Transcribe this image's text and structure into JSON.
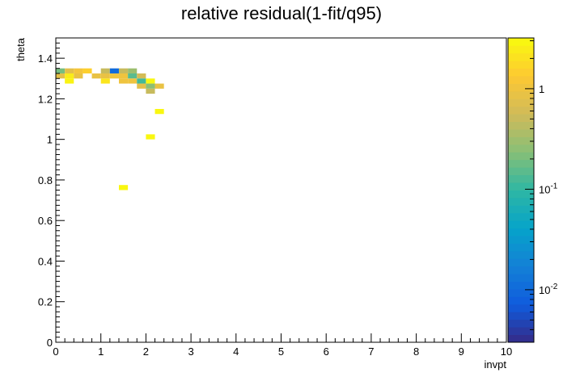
{
  "chart_data": {
    "type": "heatmap",
    "title": "relative residual(1-fit/q95)",
    "xlabel": "invpt",
    "ylabel": "theta",
    "xlim": [
      0,
      10
    ],
    "ylim": [
      0,
      1.5
    ],
    "x_ticks": [
      "0",
      "1",
      "2",
      "3",
      "4",
      "5",
      "6",
      "7",
      "8",
      "9",
      "10"
    ],
    "y_ticks": [
      "0",
      "0.2",
      "0.4",
      "0.6",
      "0.8",
      "1",
      "1.2",
      "1.4"
    ],
    "z_scale": "log",
    "z_range": [
      0.003,
      3.2
    ],
    "z_tick_labels": [
      {
        "base": "10",
        "exp": "-2",
        "value": 0.01
      },
      {
        "base": "10",
        "exp": "-1",
        "value": 0.1
      },
      {
        "base": "1",
        "exp": "",
        "value": 1
      }
    ],
    "palette": "kBird",
    "bin_size": {
      "x": 0.2,
      "y": 0.025
    },
    "cells": [
      {
        "x": 0.0,
        "y": 1.325,
        "z": 0.2
      },
      {
        "x": 0.2,
        "y": 1.325,
        "z": 0.8
      },
      {
        "x": 0.4,
        "y": 1.325,
        "z": 1.1
      },
      {
        "x": 0.6,
        "y": 1.325,
        "z": 1.5
      },
      {
        "x": 1.0,
        "y": 1.325,
        "z": 0.5
      },
      {
        "x": 1.2,
        "y": 1.325,
        "z": 0.01
      },
      {
        "x": 1.4,
        "y": 1.325,
        "z": 0.5
      },
      {
        "x": 1.6,
        "y": 1.325,
        "z": 0.3
      },
      {
        "x": 0.0,
        "y": 1.3,
        "z": 0.8
      },
      {
        "x": 0.2,
        "y": 1.3,
        "z": 2.5
      },
      {
        "x": 0.4,
        "y": 1.3,
        "z": 0.9
      },
      {
        "x": 0.8,
        "y": 1.3,
        "z": 0.9
      },
      {
        "x": 1.0,
        "y": 1.3,
        "z": 0.9
      },
      {
        "x": 1.2,
        "y": 1.3,
        "z": 1.0
      },
      {
        "x": 1.4,
        "y": 1.3,
        "z": 1.0
      },
      {
        "x": 1.6,
        "y": 1.3,
        "z": 0.15
      },
      {
        "x": 1.8,
        "y": 1.3,
        "z": 0.6
      },
      {
        "x": 0.2,
        "y": 1.275,
        "z": 2.8
      },
      {
        "x": 1.0,
        "y": 1.275,
        "z": 2.2
      },
      {
        "x": 1.4,
        "y": 1.275,
        "z": 1.0
      },
      {
        "x": 1.6,
        "y": 1.275,
        "z": 1.0
      },
      {
        "x": 1.8,
        "y": 1.275,
        "z": 0.12
      },
      {
        "x": 2.0,
        "y": 1.275,
        "z": 3.0
      },
      {
        "x": 1.8,
        "y": 1.25,
        "z": 0.8
      },
      {
        "x": 2.0,
        "y": 1.25,
        "z": 0.25
      },
      {
        "x": 2.2,
        "y": 1.25,
        "z": 0.9
      },
      {
        "x": 2.0,
        "y": 1.225,
        "z": 0.5
      },
      {
        "x": 2.2,
        "y": 1.125,
        "z": 3.0
      },
      {
        "x": 2.0,
        "y": 1.0,
        "z": 3.0
      },
      {
        "x": 1.4,
        "y": 0.75,
        "z": 3.0
      }
    ]
  }
}
